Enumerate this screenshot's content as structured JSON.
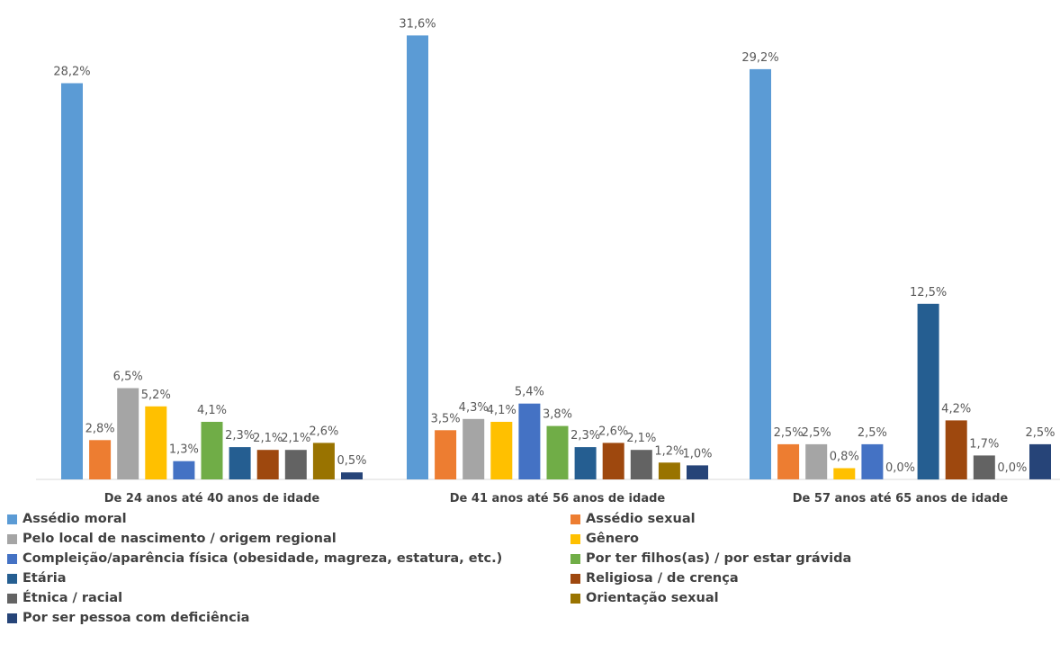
{
  "chart_data": {
    "type": "bar",
    "categories": [
      "De 24 anos até 40 anos de idade",
      "De 41 anos até 56 anos de idade",
      "De 57 anos até 65 anos de idade"
    ],
    "series": [
      {
        "name": "Assédio moral",
        "color": "#5B9BD5",
        "values": [
          28.2,
          31.6,
          29.2
        ],
        "labels": [
          "28,2%",
          "31,6%",
          "29,2%"
        ]
      },
      {
        "name": "Assédio sexual",
        "color": "#ED7D31",
        "values": [
          2.8,
          3.5,
          2.5
        ],
        "labels": [
          "2,8%",
          "3,5%",
          "2,5%"
        ]
      },
      {
        "name": "Pelo local de nascimento / origem regional",
        "color": "#A5A5A5",
        "values": [
          6.5,
          4.3,
          2.5
        ],
        "labels": [
          "6,5%",
          "4,3%",
          "2,5%"
        ]
      },
      {
        "name": "Gênero",
        "color": "#FFC000",
        "values": [
          5.2,
          4.1,
          0.8
        ],
        "labels": [
          "5,2%",
          "4,1%",
          "0,8%"
        ]
      },
      {
        "name": "Compleição/aparência física (obesidade, magreza, estatura, etc.)",
        "color": "#4472C4",
        "values": [
          1.3,
          5.4,
          2.5
        ],
        "labels": [
          "1,3%",
          "5,4%",
          "2,5%"
        ]
      },
      {
        "name": "Por ter filhos(as) / por estar grávida",
        "color": "#70AD47",
        "values": [
          4.1,
          3.8,
          0.0
        ],
        "labels": [
          "4,1%",
          "3,8%",
          "0,0%"
        ]
      },
      {
        "name": "Etária",
        "color": "#255E91",
        "values": [
          2.3,
          2.3,
          12.5
        ],
        "labels": [
          "2,3%",
          "2,3%",
          "12,5%"
        ]
      },
      {
        "name": "Religiosa / de crença",
        "color": "#9E480E",
        "values": [
          2.1,
          2.6,
          4.2
        ],
        "labels": [
          "2,1%",
          "2,6%",
          "4,2%"
        ]
      },
      {
        "name": "Étnica / racial",
        "color": "#636363",
        "values": [
          2.1,
          2.1,
          1.7
        ],
        "labels": [
          "2,1%",
          "2,1%",
          "1,7%"
        ]
      },
      {
        "name": "Orientação sexual",
        "color": "#997300",
        "values": [
          2.6,
          1.2,
          0.0
        ],
        "labels": [
          "2,6%",
          "1,2%",
          "0,0%"
        ]
      },
      {
        "name": "Por ser pessoa com deficiência",
        "color": "#264478",
        "values": [
          0.5,
          1.0,
          2.5
        ],
        "labels": [
          "0,5%",
          "1,0%",
          "2,5%"
        ]
      }
    ],
    "ylim": [
      0,
      33
    ],
    "grid": false,
    "legend_position": "bottom",
    "title": "",
    "xlabel": "",
    "ylabel": ""
  }
}
